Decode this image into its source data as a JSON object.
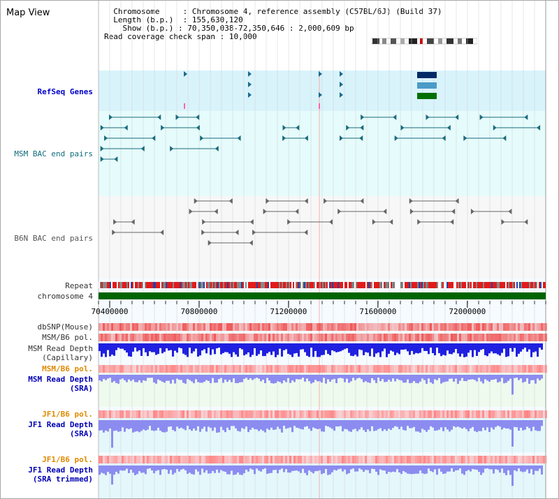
{
  "view": {
    "title": "Map View"
  },
  "info": {
    "chromosome_key": "Chromosome",
    "chromosome_val": "Chromosome 4, reference assembly (C57BL/6J) (Build 37)",
    "length_key": "Length (b.p.)",
    "length_val": "155,630,120",
    "show_key": "Show (b.p.)",
    "show_val": "70,350,038-72,350,646 : 2,000,609 bp",
    "coverage_key": "Read coverage check span",
    "coverage_val": "10,000"
  },
  "tracks": {
    "refseq": "RefSeq Genes",
    "msm_bac": "MSM BAC end pairs",
    "b6n_bac": "B6N BAC end pairs",
    "repeat": "Repeat",
    "chromosome": "chromosome 4",
    "dbsnp": "dbSNP(Mouse)",
    "msm_b6_pol_1": "MSM/B6 pol.",
    "msm_read_depth_cap_1": "MSM Read Depth",
    "msm_read_depth_cap_2": "(Capillary)",
    "msm_b6_pol_2": "MSM/B6 pol.",
    "msm_read_depth_sra_1": "MSM Read Depth",
    "msm_read_depth_sra_2": "(SRA)",
    "jf1_b6_pol_1": "JF1/B6 pol.",
    "jf1_read_depth_sra_1": "JF1 Read Depth",
    "jf1_read_depth_sra_2": "(SRA)",
    "jf1_b6_pol_2": "JF1/B6 pol.",
    "jf1_read_depth_trim_1": "JF1 Read Depth",
    "jf1_read_depth_trim_2": "(SRA trimmed)"
  },
  "axis": {
    "range": [
      70350038,
      72350646
    ],
    "ticks": [
      {
        "value": 70400000,
        "label": "70400000"
      },
      {
        "value": 70800000,
        "label": "70800000"
      },
      {
        "value": 71200000,
        "label": "71200000"
      },
      {
        "value": 71600000,
        "label": "71600000"
      },
      {
        "value": 72000000,
        "label": "72000000"
      }
    ]
  },
  "colors": {
    "refseq_bg": "#d9f3fb",
    "msm_bg": "#e6fbfb",
    "b6n_bg": "#f7f7f7",
    "chromosome_bar": "#006400",
    "repeat_red": "#e21b1b",
    "depth_blue": "#2020e0",
    "depth_light": "#8c8cf0",
    "highlight": "#ff8080"
  }
}
